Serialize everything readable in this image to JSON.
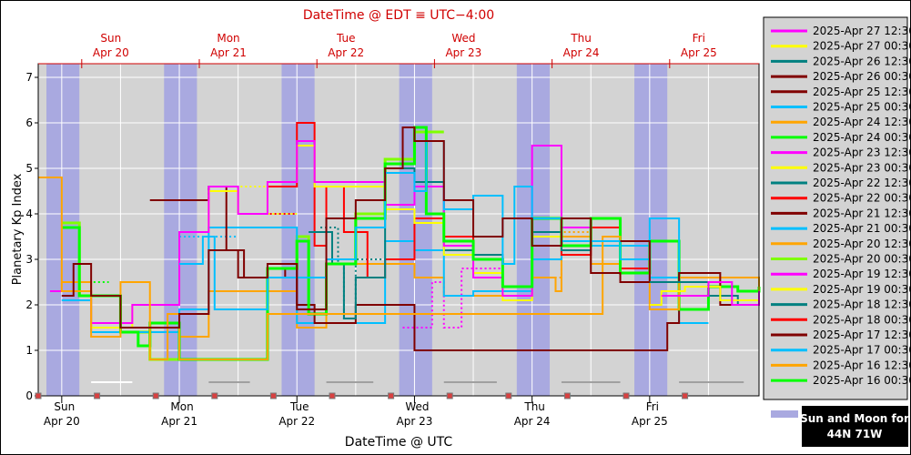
{
  "chart_data": {
    "type": "line",
    "title": "DateTime @ EDT ≡ UTC−4:00",
    "xlabel": "DateTime @ UTC",
    "ylabel": "Planetary Kp Index",
    "ylim": [
      0,
      7.3
    ],
    "xlim": [
      -0.2,
      5.93
    ],
    "yticks": [
      "0",
      "1",
      "2",
      "3",
      "4",
      "5",
      "6",
      "7"
    ],
    "day_labels": [
      {
        "day": "Sun",
        "date": "Apr 20"
      },
      {
        "day": "Mon",
        "date": "Apr 21"
      },
      {
        "day": "Tue",
        "date": "Apr 22"
      },
      {
        "day": "Wed",
        "date": "Apr 23"
      },
      {
        "day": "Thu",
        "date": "Apr 24"
      },
      {
        "day": "Fri",
        "date": "Apr 25"
      }
    ],
    "night_bands": [
      [
        -0.13,
        0.15
      ],
      [
        0.87,
        1.15
      ],
      [
        1.87,
        2.15
      ],
      [
        2.87,
        3.15
      ],
      [
        3.87,
        4.15
      ],
      [
        4.87,
        5.15
      ]
    ],
    "moon_bars": [
      [
        0.25,
        0.6
      ],
      [
        1.25,
        1.6
      ],
      [
        2.25,
        2.65
      ],
      [
        3.25,
        3.7
      ],
      [
        4.25,
        4.75
      ],
      [
        5.25,
        5.8
      ]
    ],
    "sun_moon_label": [
      "Sun and Moon for",
      "44N 71W"
    ],
    "grid": true,
    "legend_position": "right",
    "series": [
      {
        "name": "2025-Apr 27 12:30",
        "color": "#ff00ff",
        "values": [
          [
            5.1,
            2.2
          ],
          [
            5.2,
            2.2
          ],
          [
            5.5,
            2.5
          ],
          [
            5.7,
            2.0
          ],
          [
            5.93,
            2.3
          ]
        ]
      },
      {
        "name": "2025-Apr 27 00:30",
        "color": "#ffff00",
        "values": [
          [
            5.0,
            2.0
          ],
          [
            5.1,
            2.3
          ],
          [
            5.3,
            2.4
          ],
          [
            5.6,
            2.1
          ],
          [
            5.93,
            2.4
          ]
        ]
      },
      {
        "name": "2025-Apr 26 12:30",
        "color": "#008080",
        "values": [
          [
            5.0,
            2.5
          ],
          [
            5.2,
            2.5
          ],
          [
            5.5,
            2.2
          ],
          [
            5.75,
            2.0
          ],
          [
            5.93,
            2.2
          ]
        ]
      },
      {
        "name": "2025-Apr 26 00:30",
        "color": "#800000",
        "values": [
          [
            4.75,
            3.4
          ],
          [
            5.0,
            2.5
          ],
          [
            5.25,
            2.7
          ],
          [
            5.6,
            2.0
          ],
          [
            5.93,
            2.0
          ]
        ]
      },
      {
        "name": "2025-Apr 25 12:30",
        "color": "#800000",
        "values": [
          [
            0.0,
            2.2
          ],
          [
            0.1,
            2.9
          ],
          [
            0.25,
            2.2
          ],
          [
            0.5,
            1.5
          ],
          [
            1.0,
            1.8
          ],
          [
            1.25,
            3.2
          ],
          [
            1.5,
            2.6
          ],
          [
            1.75,
            2.9
          ],
          [
            2.0,
            1.9
          ],
          [
            2.25,
            3.9
          ],
          [
            2.5,
            4.3
          ],
          [
            2.75,
            5.0
          ],
          [
            2.9,
            5.9
          ],
          [
            3.0,
            5.6
          ],
          [
            3.25,
            4.3
          ],
          [
            3.5,
            3.5
          ],
          [
            3.75,
            3.9
          ],
          [
            4.0,
            3.3
          ],
          [
            4.25,
            3.9
          ],
          [
            4.5,
            2.7
          ],
          [
            4.75,
            2.5
          ]
        ]
      },
      {
        "name": "2025-Apr 25 00:30",
        "color": "#00bfff",
        "values": [
          [
            1.0,
            2.9
          ],
          [
            1.2,
            3.5
          ],
          [
            1.3,
            1.9
          ],
          [
            1.75,
            2.6
          ],
          [
            2.25,
            3.0
          ],
          [
            2.5,
            3.7
          ],
          [
            2.75,
            4.9
          ],
          [
            3.0,
            4.5
          ],
          [
            3.1,
            5.6
          ],
          [
            3.25,
            4.1
          ],
          [
            3.5,
            4.4
          ],
          [
            3.75,
            2.9
          ],
          [
            3.85,
            4.6
          ],
          [
            4.0,
            3.9
          ],
          [
            4.25,
            3.4
          ],
          [
            4.75,
            3.0
          ],
          [
            5.0,
            3.9
          ],
          [
            5.25,
            2.5
          ]
        ]
      },
      {
        "name": "2025-Apr 24 12:30",
        "color": "#ffa500",
        "values": [
          [
            -0.2,
            4.8
          ],
          [
            0.0,
            2.3
          ],
          [
            0.25,
            1.3
          ],
          [
            0.5,
            2.5
          ],
          [
            0.75,
            0.8
          ],
          [
            0.9,
            1.8
          ],
          [
            1.0,
            0.8
          ],
          [
            1.5,
            0.8
          ],
          [
            1.75,
            1.8
          ],
          [
            4.6,
            3.5
          ],
          [
            4.75,
            3.4
          ],
          [
            5.0,
            1.9
          ],
          [
            5.25,
            2.6
          ],
          [
            5.93,
            2.4
          ]
        ]
      },
      {
        "name": "2025-Apr 24 00:30",
        "color": "#00ff00",
        "values": [
          [
            0.0,
            3.7
          ],
          [
            0.15,
            2.2
          ],
          [
            0.5,
            1.4
          ],
          [
            0.65,
            1.1
          ],
          [
            0.75,
            1.6
          ],
          [
            1.0,
            0.8
          ],
          [
            1.5,
            0.8
          ],
          [
            1.75,
            2.8
          ],
          [
            2.0,
            3.4
          ],
          [
            2.1,
            1.8
          ],
          [
            2.25,
            2.9
          ],
          [
            2.5,
            3.9
          ],
          [
            2.75,
            5.1
          ],
          [
            3.0,
            5.9
          ],
          [
            3.1,
            4.0
          ],
          [
            3.25,
            3.4
          ],
          [
            3.5,
            3.0
          ],
          [
            3.75,
            2.4
          ],
          [
            4.0,
            3.9
          ],
          [
            4.25,
            3.3
          ],
          [
            4.5,
            3.9
          ],
          [
            4.75,
            2.7
          ],
          [
            5.0,
            3.4
          ],
          [
            5.25,
            1.9
          ],
          [
            5.5,
            2.4
          ],
          [
            5.75,
            2.3
          ],
          [
            5.93,
            2.4
          ]
        ]
      },
      {
        "name": "2025-Apr 23 12:30",
        "color": "#ff00ff",
        "values": [
          [
            -0.1,
            2.3
          ],
          [
            0.25,
            1.6
          ],
          [
            0.6,
            2.0
          ],
          [
            1.0,
            3.6
          ],
          [
            1.25,
            4.6
          ],
          [
            1.5,
            4.0
          ],
          [
            1.75,
            4.7
          ],
          [
            2.0,
            5.6
          ],
          [
            2.15,
            4.7
          ],
          [
            2.5,
            4.7
          ],
          [
            2.75,
            4.2
          ],
          [
            3.0,
            4.6
          ],
          [
            3.25,
            3.3
          ],
          [
            3.5,
            2.6
          ],
          [
            3.75,
            2.2
          ],
          [
            4.0,
            5.5
          ],
          [
            4.25,
            3.7
          ]
        ]
      },
      {
        "name": "2025-Apr 23 00:30",
        "color": "#ffff00",
        "values": [
          [
            -0.1,
            2.3
          ],
          [
            0.25,
            1.5
          ],
          [
            0.6,
            2.0
          ],
          [
            1.0,
            3.6
          ],
          [
            1.25,
            4.5
          ],
          [
            1.5,
            4.0
          ],
          [
            1.75,
            4.7
          ],
          [
            2.0,
            5.5
          ],
          [
            2.15,
            4.6
          ],
          [
            2.5,
            4.6
          ],
          [
            2.75,
            4.1
          ],
          [
            3.0,
            3.8
          ],
          [
            3.25,
            3.1
          ],
          [
            3.5,
            2.7
          ],
          [
            3.75,
            2.1
          ],
          [
            4.0,
            3.5
          ],
          [
            4.25,
            3.4
          ]
        ]
      },
      {
        "name": "2025-Apr 22 12:30",
        "color": "#008080",
        "values": [
          [
            2.1,
            3.6
          ],
          [
            2.3,
            2.9
          ],
          [
            2.4,
            1.7
          ],
          [
            2.5,
            2.6
          ],
          [
            2.75,
            5.0
          ],
          [
            3.0,
            4.7
          ],
          [
            3.25,
            3.2
          ],
          [
            3.5,
            3.1
          ],
          [
            3.75,
            2.4
          ],
          [
            4.0,
            3.6
          ],
          [
            4.25,
            3.2
          ]
        ]
      },
      {
        "name": "2025-Apr 22 00:30",
        "color": "#ff0000",
        "values": [
          [
            1.75,
            4.6
          ],
          [
            2.0,
            6.0
          ],
          [
            2.15,
            3.3
          ],
          [
            2.25,
            4.6
          ],
          [
            2.4,
            3.6
          ],
          [
            2.6,
            2.6
          ],
          [
            2.75,
            3.0
          ],
          [
            3.0,
            3.9
          ],
          [
            3.25,
            3.5
          ],
          [
            3.5,
            3.0
          ],
          [
            3.75,
            2.4
          ],
          [
            4.0,
            3.9
          ],
          [
            4.25,
            3.1
          ],
          [
            4.5,
            3.7
          ],
          [
            4.75,
            2.8
          ]
        ]
      },
      {
        "name": "2025-Apr 21 12:30",
        "color": "#800000",
        "values": [
          [
            0.75,
            4.3
          ],
          [
            1.0,
            4.3
          ],
          [
            1.25,
            4.6
          ],
          [
            1.4,
            3.2
          ],
          [
            1.55,
            2.6
          ],
          [
            1.9,
            2.8
          ],
          [
            2.0,
            2.0
          ],
          [
            2.15,
            1.6
          ],
          [
            2.5,
            2.0
          ],
          [
            3.0,
            1.0
          ],
          [
            5.0,
            1.0
          ],
          [
            5.15,
            1.6
          ],
          [
            5.25,
            2.2
          ]
        ]
      },
      {
        "name": "2025-Apr 21 00:30",
        "color": "#00bfff",
        "values": [
          [
            0.0,
            2.1
          ],
          [
            0.25,
            1.4
          ],
          [
            1.0,
            1.9
          ],
          [
            1.25,
            3.7
          ],
          [
            2.0,
            1.6
          ],
          [
            2.75,
            3.4
          ],
          [
            3.0,
            3.2
          ],
          [
            3.25,
            2.2
          ],
          [
            3.5,
            2.3
          ],
          [
            4.0,
            3.0
          ],
          [
            4.25,
            3.3
          ],
          [
            5.0,
            2.6
          ],
          [
            5.25,
            1.6
          ]
        ]
      },
      {
        "name": "2025-Apr 20 12:30",
        "color": "#ffa500",
        "values": [
          [
            0.0,
            2.5
          ],
          [
            0.25,
            1.5
          ],
          [
            1.0,
            1.3
          ],
          [
            1.25,
            2.3
          ],
          [
            2.0,
            1.5
          ],
          [
            2.25,
            2.9
          ],
          [
            3.0,
            2.6
          ],
          [
            3.25,
            2.2
          ],
          [
            4.0,
            2.6
          ],
          [
            4.2,
            2.3
          ],
          [
            4.25,
            3.5
          ],
          [
            4.5,
            2.9
          ]
        ]
      },
      {
        "name": "2025-Apr 20 00:30",
        "color": "#7fff00",
        "values": [
          [
            0.0,
            3.8
          ],
          [
            0.15,
            2.2
          ],
          [
            0.5,
            1.4
          ],
          [
            0.75,
            0.8
          ],
          [
            1.0,
            0.8
          ],
          [
            1.5,
            0.8
          ],
          [
            1.75,
            2.8
          ],
          [
            2.0,
            3.5
          ],
          [
            2.1,
            1.8
          ],
          [
            2.25,
            2.9
          ],
          [
            2.5,
            4.0
          ],
          [
            2.75,
            5.2
          ],
          [
            3.0,
            5.8
          ]
        ]
      },
      {
        "name": "2025-Apr 19 12:30",
        "color": "#ff00ff",
        "values": [
          [
            2.9,
            1.5
          ],
          [
            3.15,
            2.5
          ],
          [
            3.25,
            1.5
          ],
          [
            3.4,
            2.8
          ],
          [
            3.5,
            2.8
          ]
        ]
      },
      {
        "name": "2025-Apr 19 00:30",
        "color": "#ffff00",
        "values": [
          [
            1.25,
            4.6
          ],
          [
            1.75,
            4.0
          ]
        ]
      },
      {
        "name": "2025-Apr 18 12:30",
        "color": "#008080",
        "values": [
          [
            2.2,
            3.7
          ],
          [
            2.35,
            2.9
          ],
          [
            2.4,
            1.7
          ],
          [
            2.5,
            3.0
          ]
        ]
      },
      {
        "name": "2025-Apr 18 00:30",
        "color": "#ff0000",
        "values": [
          [
            1.5,
            4.0
          ],
          [
            1.75,
            4.0
          ]
        ]
      },
      {
        "name": "2025-Apr 17 12:30",
        "color": "#800000",
        "values": [
          [
            0.95,
            4.3
          ],
          [
            1.25,
            4.6
          ]
        ]
      },
      {
        "name": "2025-Apr 17 00:30",
        "color": "#00bfff",
        "values": [
          [
            1.0,
            3.5
          ],
          [
            1.25,
            3.5
          ]
        ]
      },
      {
        "name": "2025-Apr 16 12:30",
        "color": "#ffa500",
        "values": [
          [
            4.0,
            2.6
          ],
          [
            4.25,
            3.6
          ]
        ]
      },
      {
        "name": "2025-Apr 16 00:30",
        "color": "#00ff00",
        "values": [
          [
            0.0,
            2.5
          ],
          [
            0.15,
            2.5
          ]
        ]
      }
    ]
  }
}
